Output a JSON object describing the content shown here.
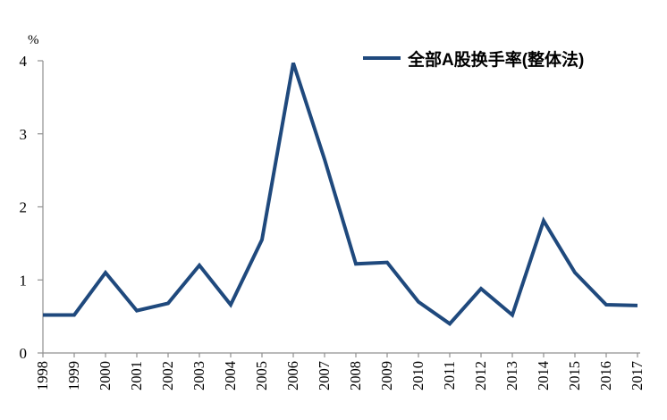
{
  "chart_data": {
    "type": "line",
    "title": "",
    "unit_label": "%",
    "categories": [
      "1998",
      "1999",
      "2000",
      "2001",
      "2002",
      "2003",
      "2004",
      "2005",
      "2006",
      "2007",
      "2008",
      "2009",
      "2010",
      "2011",
      "2012",
      "2013",
      "2014",
      "2015",
      "2016",
      "2017"
    ],
    "series": [
      {
        "name": "全部A股换手率(整体法)",
        "color": "#1F497D",
        "values": [
          0.52,
          0.52,
          1.1,
          0.58,
          0.68,
          1.2,
          0.66,
          1.55,
          3.97,
          2.65,
          1.22,
          1.24,
          0.7,
          0.4,
          0.88,
          0.52,
          1.81,
          1.1,
          0.66,
          0.65
        ]
      }
    ],
    "ylim": [
      0,
      4
    ],
    "yticks": [
      0,
      1,
      2,
      3,
      4
    ],
    "grid": false,
    "legend_position": "top-right",
    "axis_color": "#909090",
    "text_color": "#000000"
  }
}
